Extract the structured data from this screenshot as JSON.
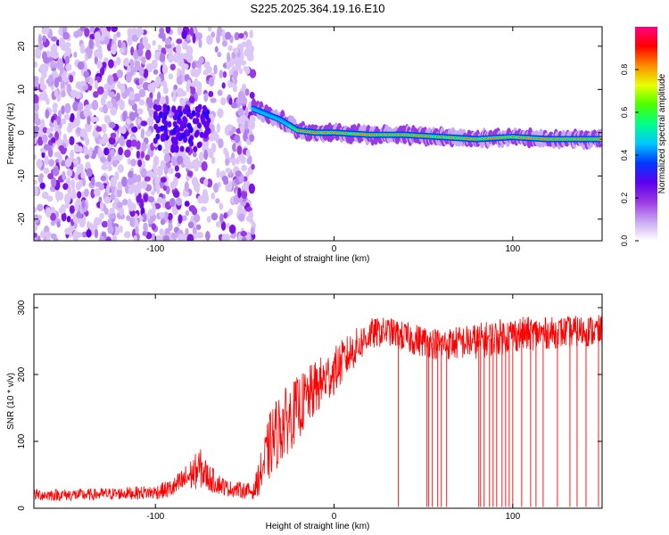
{
  "title": "S225.2025.364.19.16.E10",
  "chart_data": [
    {
      "type": "heatmap",
      "xlabel": "Height of straight line (km)",
      "ylabel": "Frequency (Hz)",
      "xlim": [
        -168,
        150
      ],
      "ylim": [
        -25,
        24.5
      ],
      "xticks": [
        -100,
        0,
        100
      ],
      "yticks": [
        -20,
        -10,
        0,
        10,
        20
      ],
      "colorbar": {
        "label": "Normalized spectral amplitude",
        "range": [
          0,
          1
        ],
        "ticks": [
          "0.0",
          "0.2",
          "0.4",
          "0.6",
          "0.8"
        ],
        "tick_values": [
          0.0,
          0.2,
          0.4,
          0.6,
          0.8
        ],
        "colors": [
          "#ffffff",
          "#c8a6f3",
          "#9a39e3",
          "#5c00f0",
          "#0038ff",
          "#00c8ff",
          "#00ff88",
          "#4cff00",
          "#e8ff00",
          "#ff8c00",
          "#ff0000",
          "#ff0080"
        ]
      },
      "ridge": {
        "x": [
          -45,
          -30,
          -20,
          -10,
          0,
          20,
          40,
          60,
          80,
          100,
          120,
          150
        ],
        "frequency": [
          5.5,
          3,
          0.5,
          0,
          0,
          -0.5,
          -0.5,
          -1,
          -1.5,
          -1,
          -1.5,
          -1.5
        ]
      },
      "noise_region": {
        "x_range": [
          -168,
          -45
        ],
        "frequency_range": [
          -25,
          24.5
        ]
      }
    },
    {
      "type": "line",
      "xlabel": "Height of straight line (km)",
      "ylabel": "SNR (10 * v/v)",
      "xlim": [
        -168,
        150
      ],
      "ylim": [
        0,
        320
      ],
      "xticks": [
        -100,
        0,
        100
      ],
      "yticks": [
        0,
        100,
        200,
        300
      ],
      "color": "#ff0000",
      "series": [
        {
          "name": "SNR",
          "x": [
            -168,
            -140,
            -120,
            -100,
            -90,
            -80,
            -75,
            -70,
            -60,
            -45,
            -40,
            -35,
            -30,
            -20,
            -10,
            0,
            10,
            20,
            30,
            40,
            60,
            80,
            100,
            120,
            140,
            150
          ],
          "mean": [
            20,
            20,
            22,
            24,
            30,
            50,
            60,
            45,
            30,
            25,
            60,
            100,
            120,
            150,
            180,
            205,
            235,
            260,
            265,
            255,
            245,
            250,
            260,
            262,
            265,
            265
          ],
          "spread": [
            15,
            15,
            15,
            18,
            25,
            40,
            50,
            35,
            20,
            20,
            60,
            90,
            90,
            80,
            70,
            60,
            50,
            40,
            35,
            40,
            40,
            45,
            45,
            40,
            40,
            40
          ],
          "dropouts": [
            36,
            52,
            53,
            55,
            58,
            60,
            63,
            81,
            82,
            84,
            87,
            89,
            91,
            94,
            96,
            98,
            100,
            105,
            110,
            113,
            117,
            125,
            132,
            136,
            141,
            148
          ]
        }
      ]
    }
  ]
}
